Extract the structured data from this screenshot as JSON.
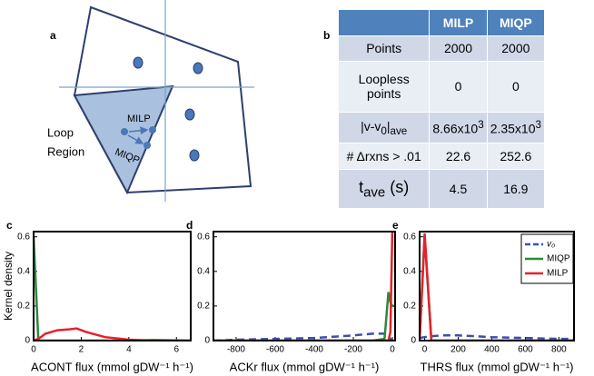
{
  "diagram": {
    "label": "a",
    "milp": "MILP",
    "miqp": "MIQP",
    "region": [
      "Loop",
      "Region"
    ]
  },
  "table": {
    "label": "b",
    "header": [
      "MILP",
      "MIQP"
    ],
    "rows": [
      {
        "label": [
          "Points"
        ],
        "values": [
          [
            2000
          ],
          [
            2000
          ]
        ]
      },
      {
        "label": [
          "Loopless points"
        ],
        "values": [
          [
            0
          ],
          [
            0
          ]
        ]
      },
      {
        "label": [
          "|v-v",
          {
            "sub": "0"
          },
          "|",
          {
            "sub": "ave"
          }
        ],
        "values": [
          [
            "8.66x10",
            {
              "sup": "3"
            }
          ],
          [
            "2.35x10",
            {
              "sup": "3"
            }
          ]
        ]
      },
      {
        "label": [
          "# Δrxns > .01"
        ],
        "values": [
          [
            22.6
          ],
          [
            252.6
          ]
        ]
      },
      {
        "label": [
          "t",
          {
            "sub": "ave"
          },
          " (s)"
        ],
        "values": [
          [
            4.5
          ],
          [
            16.9
          ]
        ]
      }
    ]
  },
  "chart_data": [
    {
      "type": "line",
      "label": "c",
      "y_label": "Kernel density",
      "x_label": "ACONT flux (mmol gDW⁻¹ h⁻¹)",
      "x": [
        0,
        0.2,
        0.5,
        1,
        1.5,
        1.8,
        2.2,
        3,
        4,
        5,
        6.6
      ],
      "series": [
        {
          "name": "MIQP",
          "color": "#2a8a3a",
          "values": [
            0.6,
            0,
            0,
            0,
            0,
            0,
            0,
            0,
            0,
            0.003,
            0
          ]
        },
        {
          "name": "MILP",
          "color": "#e8202a",
          "values": [
            0,
            0.01,
            0.04,
            0.06,
            0.065,
            0.07,
            0.05,
            0.02,
            0.005,
            0,
            0
          ]
        }
      ],
      "xlim": [
        0,
        6.6
      ],
      "xticks": [
        0,
        2,
        4,
        6
      ],
      "ylim": [
        0,
        0.63
      ],
      "yticks": [
        0,
        0.2,
        0.4,
        0.6
      ]
    },
    {
      "type": "line",
      "label": "d",
      "x_label": "ACKr flux (mmol gDW⁻¹ h⁻¹)",
      "x": [
        -916,
        -800,
        -600,
        -400,
        -200,
        -100,
        -40,
        -20,
        -10,
        0,
        14
      ],
      "series": [
        {
          "name": "v₀",
          "color": "#3a4fb0",
          "dash": true,
          "values": [
            0,
            0.005,
            0.01,
            0.015,
            0.03,
            0.04,
            0.04,
            0.02,
            0.01,
            0,
            0
          ]
        },
        {
          "name": "MIQP",
          "color": "#2a8a3a",
          "values": [
            0,
            0,
            0,
            0,
            0,
            0,
            0.01,
            0.28,
            0.22,
            0.2,
            0.2
          ]
        },
        {
          "name": "MILP",
          "color": "#e8202a",
          "values": [
            0,
            0,
            0,
            0,
            0,
            0,
            0,
            0,
            0.05,
            0.65,
            0.65
          ]
        }
      ],
      "xlim": [
        -916,
        14
      ],
      "xticks": [
        -800,
        -600,
        -400,
        -200,
        0
      ],
      "ylim": [
        0,
        0.63
      ],
      "yticks": [
        0,
        0.2,
        0.4,
        0.6
      ]
    },
    {
      "type": "line",
      "label": "e",
      "x_label": "THRS flux (mmol gDW⁻¹ h⁻¹)",
      "legend": "upper right",
      "x": [
        -30,
        0,
        40,
        100,
        200,
        400,
        600,
        800,
        890
      ],
      "series": [
        {
          "name": "v₀",
          "color": "#3a4fb0",
          "dash": true,
          "values": [
            0.015,
            0.02,
            0.025,
            0.03,
            0.03,
            0.02,
            0.015,
            0.01,
            0.01
          ]
        },
        {
          "name": "MIQP",
          "color": "#2a8a3a",
          "values": [
            0,
            0.6,
            0,
            0,
            0,
            0,
            0,
            0,
            0
          ]
        },
        {
          "name": "MILP",
          "color": "#e8202a",
          "values": [
            0,
            0.62,
            0,
            0,
            0,
            0,
            0,
            0,
            0
          ]
        }
      ],
      "xlim": [
        -30,
        890
      ],
      "xticks": [
        0,
        200,
        400,
        600,
        800
      ],
      "ylim": [
        0,
        0.63
      ],
      "yticks": [
        0,
        0.2,
        0.4,
        0.6
      ]
    }
  ]
}
